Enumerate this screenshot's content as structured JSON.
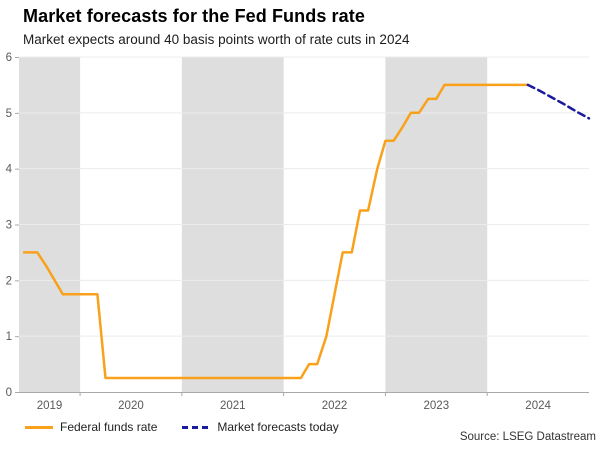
{
  "header": {
    "title": "Market forecasts for the Fed Funds rate",
    "subtitle": "Market expects around 40 basis points worth of rate cuts in 2024"
  },
  "legend": {
    "items": [
      {
        "label": "Federal funds rate",
        "color": "#F9A11B",
        "style": "solid"
      },
      {
        "label": "Market forecasts today",
        "color": "#1A1A9C",
        "style": "dashed"
      }
    ]
  },
  "footer": {
    "source": "Source: LSEG Datastream"
  },
  "chart_data": {
    "type": "line",
    "title": "Market forecasts for the Fed Funds rate",
    "subtitle": "Market expects around 40 basis points worth of rate cuts in 2024",
    "xlabel": "",
    "ylabel": "",
    "x_range": [
      2019.4,
      2025.0
    ],
    "y_range": [
      0,
      6
    ],
    "y_ticks": [
      0,
      1,
      2,
      3,
      4,
      5,
      6
    ],
    "x_tick_years": [
      2019,
      2020,
      2021,
      2022,
      2023,
      2024
    ],
    "shaded_years": [
      2019,
      2021,
      2023
    ],
    "grid": true,
    "legend_position": "bottom-left",
    "colors": {
      "band": "#DEDEDE",
      "grid": "#ECECEC",
      "axis": "#A9A9A9",
      "tick_label": "#595959"
    },
    "series": [
      {
        "name": "Federal funds rate",
        "color": "#F9A11B",
        "dash": false,
        "points": [
          [
            2019.45,
            2.5
          ],
          [
            2019.58,
            2.5
          ],
          [
            2019.67,
            2.25
          ],
          [
            2019.75,
            2.0
          ],
          [
            2019.83,
            1.75
          ],
          [
            2020.17,
            1.75
          ],
          [
            2020.25,
            0.25
          ],
          [
            2022.17,
            0.25
          ],
          [
            2022.25,
            0.5
          ],
          [
            2022.33,
            0.5
          ],
          [
            2022.42,
            1.0
          ],
          [
            2022.5,
            1.75
          ],
          [
            2022.58,
            2.5
          ],
          [
            2022.67,
            2.5
          ],
          [
            2022.75,
            3.25
          ],
          [
            2022.83,
            3.25
          ],
          [
            2022.92,
            4.0
          ],
          [
            2023.0,
            4.5
          ],
          [
            2023.08,
            4.5
          ],
          [
            2023.17,
            4.75
          ],
          [
            2023.25,
            5.0
          ],
          [
            2023.33,
            5.0
          ],
          [
            2023.42,
            5.25
          ],
          [
            2023.5,
            5.25
          ],
          [
            2023.58,
            5.5
          ],
          [
            2024.4,
            5.5
          ]
        ]
      },
      {
        "name": "Market forecasts today",
        "color": "#1A1A9C",
        "dash": true,
        "points": [
          [
            2024.4,
            5.5
          ],
          [
            2024.5,
            5.41
          ],
          [
            2024.62,
            5.29
          ],
          [
            2024.75,
            5.16
          ],
          [
            2024.87,
            5.03
          ],
          [
            2025.0,
            4.9
          ]
        ]
      }
    ]
  }
}
